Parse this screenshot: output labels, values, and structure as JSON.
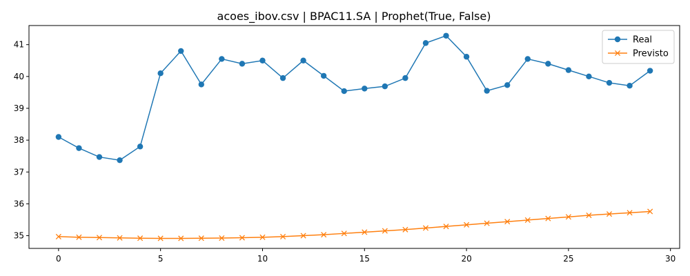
{
  "chart_data": {
    "type": "line",
    "title": "acoes_ibov.csv | BPAC11.SA | Prophet(True, False)",
    "xlabel": "",
    "ylabel": "",
    "xlim": [
      -1.45,
      30.45
    ],
    "ylim": [
      34.6,
      41.6
    ],
    "x_ticks": [
      0,
      5,
      10,
      15,
      20,
      25,
      30
    ],
    "y_ticks": [
      35,
      36,
      37,
      38,
      39,
      40,
      41
    ],
    "grid": false,
    "legend_position": "top-right",
    "x": [
      0,
      1,
      2,
      3,
      4,
      5,
      6,
      7,
      8,
      9,
      10,
      11,
      12,
      13,
      14,
      15,
      16,
      17,
      18,
      19,
      20,
      21,
      22,
      23,
      24,
      25,
      26,
      27,
      28,
      29
    ],
    "series": [
      {
        "name": "Real",
        "color": "#1f77b4",
        "marker": "circle",
        "values": [
          38.1,
          37.75,
          37.47,
          37.37,
          37.8,
          40.1,
          40.8,
          39.75,
          40.55,
          40.4,
          40.5,
          39.95,
          40.5,
          40.02,
          39.54,
          39.62,
          39.69,
          39.95,
          41.05,
          41.28,
          40.62,
          39.55,
          39.73,
          40.55,
          40.4,
          40.2,
          40.0,
          39.8,
          39.71,
          40.18
        ]
      },
      {
        "name": "Previsto",
        "color": "#ff7f0e",
        "marker": "x",
        "values": [
          34.97,
          34.95,
          34.94,
          34.93,
          34.92,
          34.915,
          34.915,
          34.92,
          34.925,
          34.935,
          34.95,
          34.97,
          35.0,
          35.03,
          35.07,
          35.11,
          35.15,
          35.19,
          35.24,
          35.29,
          35.34,
          35.39,
          35.44,
          35.49,
          35.54,
          35.59,
          35.64,
          35.68,
          35.72,
          35.76
        ]
      }
    ]
  }
}
